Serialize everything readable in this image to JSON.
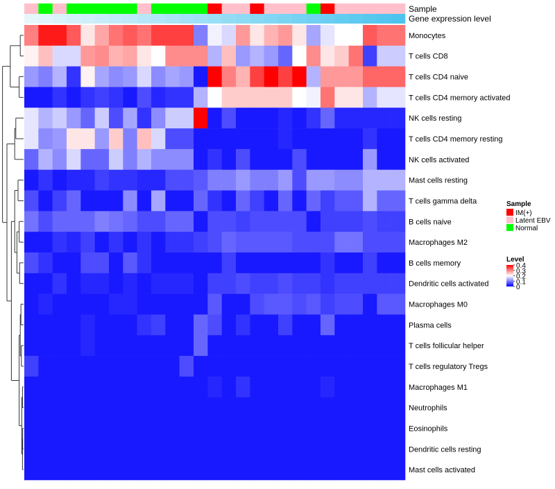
{
  "chart_data": {
    "type": "heatmap",
    "title": "",
    "annotation_labels": [
      "Sample",
      "Gene expression level"
    ],
    "rows": [
      "Monocytes",
      "T cells CD8",
      "T cells CD4 naive",
      "T cells CD4 memory activated",
      "NK cells resting",
      "T cells CD4 memory resting",
      "NK cells activated",
      "Mast cells resting",
      "T cells gamma delta",
      "B cells naive",
      "Macrophages M2",
      "B cells memory",
      "Dendritic cells activated",
      "Macrophages M0",
      "Plasma cells",
      "T cells follicular helper",
      "T cells regulatory  Tregs",
      "Macrophages M1",
      "Neutrophils",
      "Eosinophils",
      "Dendritic cells resting",
      "Mast cells activated"
    ],
    "sample_groups": [
      "Latent EBV",
      "Normal",
      "Latent EBV",
      "Normal",
      "Normal",
      "Normal",
      "Normal",
      "Normal",
      "Latent EBV",
      "Normal",
      "Normal",
      "Normal",
      "Normal",
      "IM(+)",
      "Latent EBV",
      "Latent EBV",
      "IM(+)",
      "Latent EBV",
      "Latent EBV",
      "Latent EBV",
      "Normal",
      "IM(+)",
      "Latent EBV",
      "Latent EBV",
      "Latent EBV",
      "Latent EBV",
      "Latent EBV"
    ],
    "gene_expression_levels": [
      0.05,
      0.06,
      0.07,
      0.08,
      0.09,
      0.1,
      0.11,
      0.12,
      0.13,
      0.14,
      0.15,
      0.16,
      0.17,
      0.18,
      0.19,
      0.2,
      0.21,
      0.22,
      0.23,
      0.24,
      0.25,
      0.26,
      0.27,
      0.28,
      0.29,
      0.3,
      0.31
    ],
    "values": [
      [
        0.3,
        0.38,
        0.38,
        0.33,
        0.22,
        0.27,
        0.31,
        0.33,
        0.31,
        0.35,
        0.35,
        0.35,
        0.1,
        0.19,
        0.17,
        0.28,
        0.22,
        0.26,
        0.28,
        0.22,
        0.13,
        0.18,
        0.2,
        0.2,
        0.33,
        0.31,
        0.31
      ],
      [
        0.21,
        0.25,
        0.17,
        0.17,
        0.28,
        0.29,
        0.26,
        0.27,
        0.22,
        0.2,
        0.29,
        0.29,
        0.29,
        0.14,
        0.25,
        0.12,
        0.14,
        0.12,
        0.08,
        0.2,
        0.29,
        0.22,
        0.24,
        0.31,
        0.05,
        0.16,
        0.16
      ],
      [
        0.12,
        0.1,
        0.14,
        0.04,
        0.21,
        0.13,
        0.11,
        0.12,
        0.17,
        0.11,
        0.13,
        0.12,
        0.02,
        0.4,
        0.3,
        0.26,
        0.35,
        0.4,
        0.35,
        0.4,
        0.14,
        0.28,
        0.28,
        0.28,
        0.32,
        0.32,
        0.32
      ],
      [
        0.02,
        0.02,
        0.04,
        0.02,
        0.04,
        0.05,
        0.04,
        0.02,
        0.06,
        0.03,
        0.04,
        0.04,
        0.14,
        0.2,
        0.24,
        0.24,
        0.24,
        0.24,
        0.24,
        0.2,
        0.19,
        0.31,
        0.22,
        0.22,
        0.14,
        0.18,
        0.18
      ],
      [
        0.18,
        0.14,
        0.16,
        0.12,
        0.08,
        0.16,
        0.06,
        0.13,
        0.04,
        0.11,
        0.16,
        0.16,
        0.4,
        0.02,
        0.06,
        0.02,
        0.02,
        0.02,
        0.03,
        0.02,
        0.04,
        0.08,
        0.03,
        0.03,
        0.03,
        0.03,
        0.03
      ],
      [
        0.18,
        0.11,
        0.12,
        0.22,
        0.22,
        0.12,
        0.24,
        0.1,
        0.25,
        0.17,
        0.06,
        0.06,
        0.02,
        0.02,
        0.02,
        0.02,
        0.02,
        0.02,
        0.03,
        0.02,
        0.02,
        0.02,
        0.02,
        0.02,
        0.04,
        0.02,
        0.02
      ],
      [
        0.08,
        0.14,
        0.11,
        0.17,
        0.08,
        0.08,
        0.16,
        0.1,
        0.14,
        0.11,
        0.11,
        0.11,
        0.02,
        0.04,
        0.02,
        0.06,
        0.02,
        0.02,
        0.02,
        0.06,
        0.02,
        0.02,
        0.02,
        0.02,
        0.12,
        0.02,
        0.02
      ],
      [
        0.02,
        0.04,
        0.02,
        0.03,
        0.03,
        0.05,
        0.04,
        0.04,
        0.03,
        0.03,
        0.06,
        0.06,
        0.07,
        0.1,
        0.1,
        0.12,
        0.1,
        0.1,
        0.12,
        0.06,
        0.12,
        0.12,
        0.11,
        0.11,
        0.14,
        0.14,
        0.14
      ],
      [
        0.06,
        0.02,
        0.05,
        0.08,
        0.02,
        0.02,
        0.02,
        0.11,
        0.02,
        0.13,
        0.02,
        0.02,
        0.08,
        0.04,
        0.02,
        0.08,
        0.05,
        0.02,
        0.08,
        0.02,
        0.08,
        0.05,
        0.07,
        0.07,
        0.14,
        0.08,
        0.08
      ],
      [
        0.09,
        0.06,
        0.08,
        0.08,
        0.08,
        0.1,
        0.09,
        0.08,
        0.06,
        0.06,
        0.08,
        0.08,
        0.02,
        0.06,
        0.06,
        0.05,
        0.06,
        0.06,
        0.06,
        0.06,
        0.02,
        0.05,
        0.05,
        0.05,
        0.06,
        0.05,
        0.05
      ],
      [
        0.02,
        0.02,
        0.04,
        0.03,
        0.05,
        0.02,
        0.04,
        0.02,
        0.04,
        0.02,
        0.04,
        0.04,
        0.05,
        0.06,
        0.08,
        0.07,
        0.07,
        0.07,
        0.07,
        0.06,
        0.06,
        0.06,
        0.09,
        0.09,
        0.06,
        0.06,
        0.06
      ],
      [
        0.06,
        0.04,
        0.02,
        0.02,
        0.06,
        0.06,
        0.02,
        0.07,
        0.04,
        0.02,
        0.02,
        0.02,
        0.02,
        0.02,
        0.05,
        0.02,
        0.02,
        0.02,
        0.02,
        0.02,
        0.02,
        0.04,
        0.02,
        0.02,
        0.05,
        0.02,
        0.02
      ],
      [
        0.02,
        0.02,
        0.04,
        0.02,
        0.03,
        0.03,
        0.02,
        0.03,
        0.02,
        0.03,
        0.03,
        0.03,
        0.02,
        0.05,
        0.05,
        0.06,
        0.05,
        0.05,
        0.06,
        0.05,
        0.05,
        0.04,
        0.05,
        0.05,
        0.05,
        0.05,
        0.05
      ],
      [
        0.02,
        0.03,
        0.02,
        0.02,
        0.02,
        0.02,
        0.03,
        0.03,
        0.02,
        0.02,
        0.02,
        0.02,
        0.02,
        0.07,
        0.02,
        0.02,
        0.06,
        0.07,
        0.07,
        0.06,
        0.07,
        0.05,
        0.06,
        0.06,
        0.02,
        0.07,
        0.07
      ],
      [
        0.02,
        0.02,
        0.02,
        0.02,
        0.03,
        0.02,
        0.02,
        0.02,
        0.04,
        0.05,
        0.02,
        0.02,
        0.08,
        0.06,
        0.02,
        0.04,
        0.02,
        0.02,
        0.05,
        0.02,
        0.02,
        0.08,
        0.02,
        0.02,
        0.02,
        0.02,
        0.02
      ],
      [
        0.02,
        0.02,
        0.02,
        0.02,
        0.03,
        0.02,
        0.02,
        0.02,
        0.02,
        0.02,
        0.02,
        0.02,
        0.08,
        0.02,
        0.02,
        0.02,
        0.02,
        0.02,
        0.02,
        0.02,
        0.02,
        0.02,
        0.02,
        0.02,
        0.02,
        0.02,
        0.02
      ],
      [
        0.05,
        0.02,
        0.02,
        0.02,
        0.02,
        0.02,
        0.02,
        0.02,
        0.02,
        0.02,
        0.02,
        0.06,
        0.02,
        0.02,
        0.02,
        0.02,
        0.02,
        0.02,
        0.02,
        0.02,
        0.02,
        0.02,
        0.02,
        0.02,
        0.02,
        0.02,
        0.02
      ],
      [
        0.02,
        0.02,
        0.02,
        0.02,
        0.02,
        0.02,
        0.02,
        0.02,
        0.02,
        0.02,
        0.02,
        0.02,
        0.02,
        0.03,
        0.02,
        0.04,
        0.02,
        0.02,
        0.02,
        0.02,
        0.02,
        0.03,
        0.02,
        0.02,
        0.02,
        0.02,
        0.02
      ],
      [
        0.02,
        0.02,
        0.02,
        0.02,
        0.02,
        0.02,
        0.02,
        0.02,
        0.02,
        0.02,
        0.02,
        0.02,
        0.02,
        0.02,
        0.02,
        0.02,
        0.02,
        0.02,
        0.02,
        0.02,
        0.02,
        0.02,
        0.02,
        0.02,
        0.02,
        0.02,
        0.02
      ],
      [
        0.02,
        0.02,
        0.02,
        0.02,
        0.02,
        0.02,
        0.02,
        0.02,
        0.02,
        0.02,
        0.02,
        0.02,
        0.02,
        0.02,
        0.02,
        0.02,
        0.02,
        0.02,
        0.02,
        0.02,
        0.02,
        0.02,
        0.02,
        0.02,
        0.02,
        0.02,
        0.02
      ],
      [
        0.02,
        0.02,
        0.02,
        0.02,
        0.02,
        0.02,
        0.02,
        0.02,
        0.02,
        0.02,
        0.02,
        0.02,
        0.02,
        0.02,
        0.02,
        0.02,
        0.02,
        0.02,
        0.02,
        0.02,
        0.02,
        0.02,
        0.02,
        0.02,
        0.02,
        0.02,
        0.02
      ],
      [
        0.02,
        0.02,
        0.02,
        0.02,
        0.02,
        0.02,
        0.02,
        0.02,
        0.02,
        0.02,
        0.02,
        0.02,
        0.02,
        0.02,
        0.02,
        0.02,
        0.02,
        0.02,
        0.02,
        0.02,
        0.02,
        0.02,
        0.02,
        0.02,
        0.02,
        0.02,
        0.02
      ]
    ],
    "color_scale": {
      "min": 0,
      "max": 0.4,
      "low": "#0000ff",
      "mid": "#ffffff",
      "high": "#ff0000",
      "midpoint": 0.2
    },
    "legend": {
      "sample_title": "Sample",
      "sample_entries": [
        {
          "label": "IM(+)",
          "color": "#ff0000"
        },
        {
          "label": "Latent EBV",
          "color": "#ffc0cb"
        },
        {
          "label": "Normal",
          "color": "#00ff00"
        }
      ],
      "level_title": "Level",
      "level_ticks": [
        "0.4",
        "0.3",
        "0.2",
        "0.1",
        "0"
      ],
      "level_tick_values": [
        0.4,
        0.3,
        0.2,
        0.1,
        0
      ]
    },
    "gene_expression_colors": {
      "low": "#e6f7fc",
      "high": "#4cc4ee"
    }
  }
}
